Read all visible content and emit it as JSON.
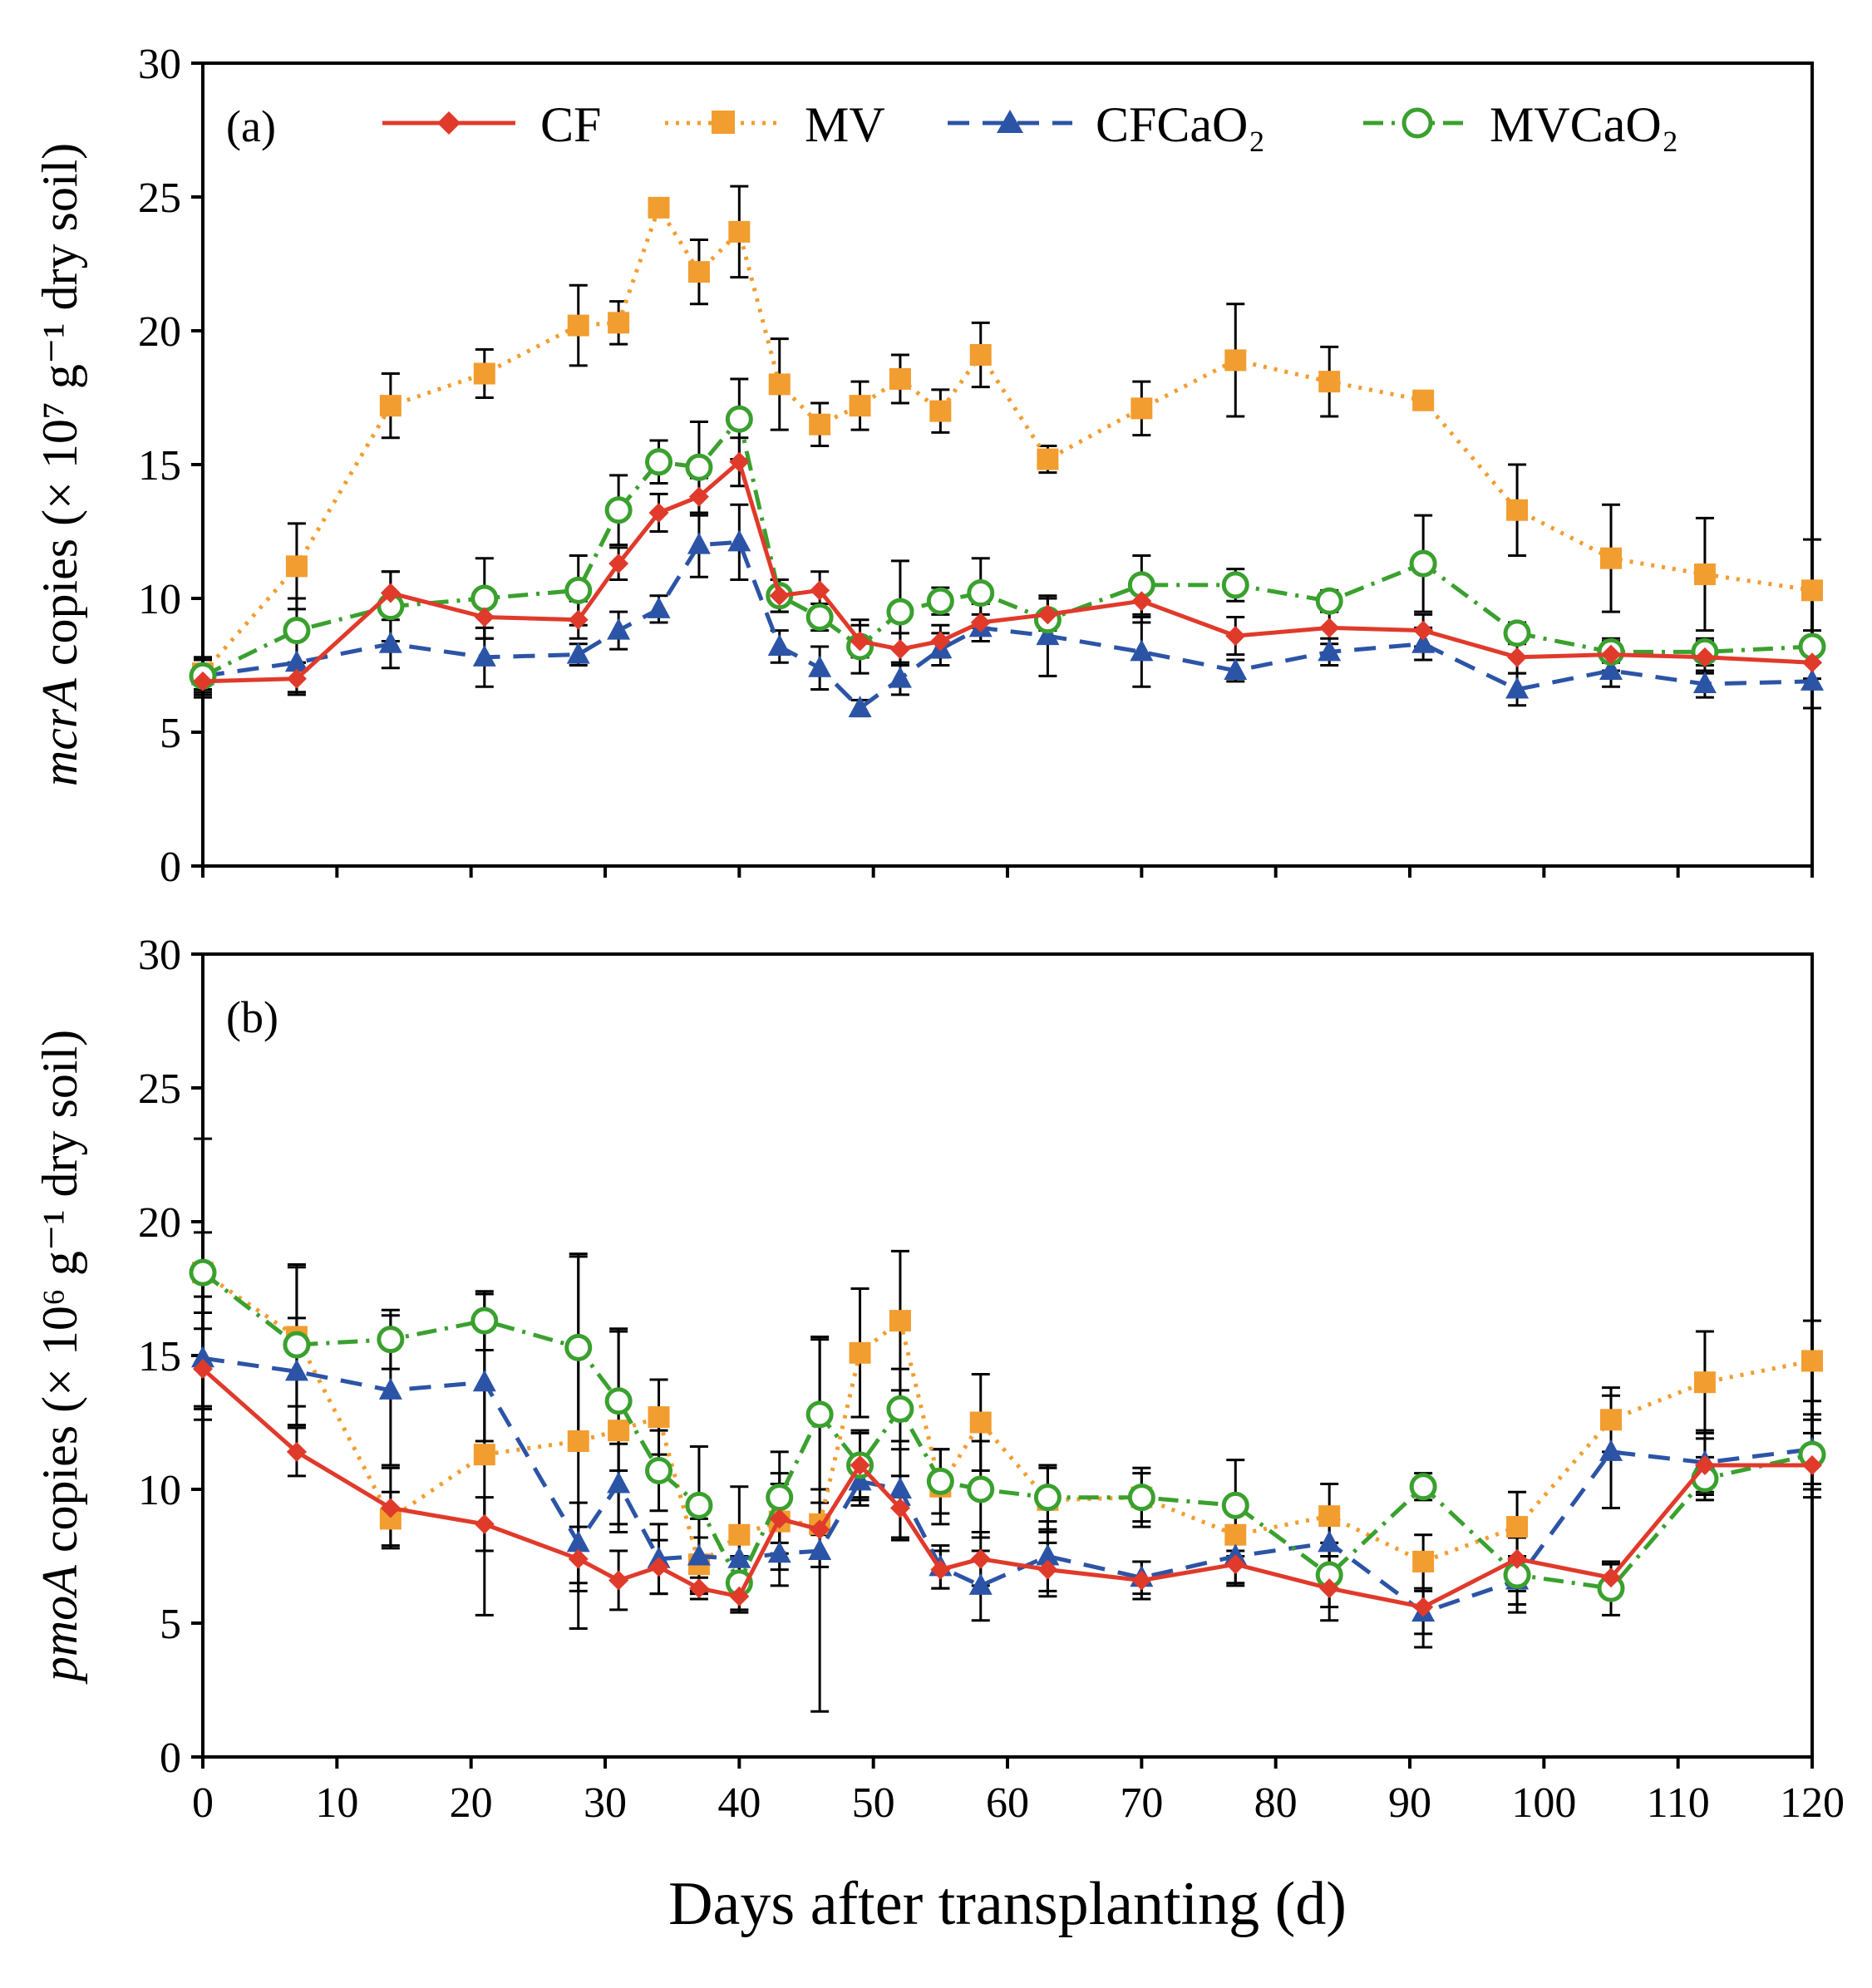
{
  "figure": {
    "xlabel": "Days after transplanting (d)",
    "xticks": [
      "0",
      "10",
      "20",
      "30",
      "40",
      "50",
      "60",
      "70",
      "80",
      "90",
      "100",
      "110",
      "120"
    ],
    "legend": [
      {
        "name": "CF",
        "color": "#e03a2b",
        "marker": "diamond",
        "line": "solid"
      },
      {
        "name": "MV",
        "color": "#f29d30",
        "marker": "square",
        "line": "dotted"
      },
      {
        "name": "CFCaO₂",
        "color": "#2c54a6",
        "marker": "triangle",
        "line": "dashed"
      },
      {
        "name": "MVCaO₂",
        "color": "#3aa02e",
        "marker": "open-circle",
        "line": "dash-dot"
      }
    ]
  },
  "chart_data": [
    {
      "type": "line",
      "panel": "(a)",
      "ylabel_gene": "mcrA",
      "ylabel_rest": " copies (× 10⁷ g⁻¹ dry soil)",
      "xlabel": "Days after transplanting (d)",
      "xlim": [
        0,
        120
      ],
      "ylim": [
        0,
        30
      ],
      "yticks": [
        "0",
        "5",
        "10",
        "15",
        "20",
        "25",
        "30"
      ],
      "series": [
        {
          "name": "CF",
          "x": [
            0,
            7,
            14,
            21,
            28,
            31,
            34,
            37,
            40,
            43,
            46,
            49,
            52,
            55,
            58,
            63,
            70,
            77,
            84,
            91,
            98,
            105,
            112,
            120
          ],
          "y": [
            6.9,
            7.0,
            10.2,
            9.3,
            9.2,
            11.3,
            13.2,
            13.8,
            15.1,
            10.1,
            10.3,
            8.4,
            8.1,
            8.4,
            9.1,
            9.4,
            9.9,
            8.6,
            8.9,
            8.8,
            7.8,
            7.9,
            7.8,
            7.6
          ],
          "err": [
            0.6,
            0.6,
            0.8,
            0.8,
            0.7,
            0.6,
            0.7,
            0.7,
            0.9,
            0.6,
            0.7,
            0.6,
            0.6,
            0.6,
            0.7,
            0.6,
            0.8,
            0.7,
            0.6,
            0.6,
            0.6,
            0.6,
            0.6,
            0.6
          ]
        },
        {
          "name": "MV",
          "x": [
            0,
            7,
            14,
            21,
            28,
            31,
            34,
            37,
            40,
            43,
            46,
            49,
            52,
            55,
            58,
            63,
            70,
            77,
            84,
            91,
            98,
            105,
            112,
            120
          ],
          "y": [
            7.2,
            11.2,
            17.2,
            18.4,
            20.2,
            20.3,
            24.6,
            22.2,
            23.7,
            18.0,
            16.5,
            17.2,
            18.2,
            17.0,
            19.1,
            15.2,
            17.1,
            18.9,
            18.1,
            17.4,
            13.3,
            11.5,
            10.9,
            10.3
          ],
          "err": [
            0.6,
            1.6,
            1.2,
            0.9,
            1.5,
            0.8,
            0.3,
            1.2,
            1.7,
            1.7,
            0.8,
            0.9,
            0.9,
            0.8,
            1.2,
            0.5,
            1.0,
            2.1,
            1.3,
            0.3,
            1.7,
            2.0,
            2.1,
            1.9
          ]
        },
        {
          "name": "CFCaO₂",
          "x": [
            0,
            7,
            14,
            21,
            28,
            31,
            34,
            37,
            40,
            43,
            46,
            49,
            52,
            55,
            58,
            63,
            70,
            77,
            84,
            91,
            98,
            105,
            112,
            120
          ],
          "y": [
            7.1,
            7.6,
            8.3,
            7.8,
            7.9,
            8.8,
            9.6,
            12.0,
            12.1,
            8.2,
            7.4,
            5.9,
            7.0,
            8.1,
            8.9,
            8.6,
            8.0,
            7.3,
            8.0,
            8.3,
            6.6,
            7.3,
            6.8,
            6.9
          ],
          "err": [
            0.6,
            1.1,
            0.9,
            1.1,
            0.4,
            0.7,
            0.5,
            1.2,
            1.4,
            0.6,
            0.8,
            0.3,
            0.6,
            0.6,
            0.5,
            1.5,
            1.3,
            0.4,
            0.5,
            0.6,
            0.6,
            0.6,
            0.5,
            1.0
          ]
        },
        {
          "name": "MVCaO₂",
          "x": [
            0,
            7,
            14,
            21,
            28,
            31,
            34,
            37,
            40,
            43,
            46,
            49,
            52,
            55,
            58,
            63,
            70,
            77,
            84,
            91,
            98,
            105,
            112,
            120
          ],
          "y": [
            7.1,
            8.8,
            9.7,
            10.0,
            10.3,
            13.3,
            15.1,
            14.9,
            16.7,
            10.1,
            9.3,
            8.2,
            9.5,
            9.9,
            10.2,
            9.2,
            10.5,
            10.5,
            9.9,
            11.3,
            8.7,
            8.0,
            8.0,
            8.2
          ],
          "err": [
            0.7,
            1.2,
            1.3,
            1.5,
            1.3,
            1.3,
            0.8,
            1.7,
            1.5,
            0.6,
            0.5,
            1.0,
            1.9,
            0.5,
            1.3,
            0.8,
            1.1,
            0.6,
            0.4,
            1.8,
            0.4,
            0.4,
            0.5,
            0.6
          ]
        }
      ]
    },
    {
      "type": "line",
      "panel": "(b)",
      "ylabel_gene": "pmoA",
      "ylabel_rest": " copies (× 10⁶ g⁻¹ dry soil)",
      "xlabel": "Days after transplanting (d)",
      "xlim": [
        0,
        120
      ],
      "ylim": [
        0,
        30
      ],
      "yticks": [
        "0",
        "5",
        "10",
        "15",
        "20",
        "25",
        "30"
      ],
      "series": [
        {
          "name": "CF",
          "x": [
            0,
            7,
            14,
            21,
            28,
            31,
            34,
            37,
            40,
            43,
            46,
            49,
            52,
            55,
            58,
            63,
            70,
            77,
            84,
            91,
            98,
            105,
            112,
            120
          ],
          "y": [
            14.5,
            11.4,
            9.3,
            8.7,
            7.4,
            6.6,
            7.1,
            6.3,
            6.0,
            8.9,
            8.5,
            10.9,
            9.3,
            7.0,
            7.4,
            7.0,
            6.6,
            7.2,
            6.3,
            5.6,
            7.4,
            6.7,
            10.9,
            10.9
          ],
          "err": [
            1.5,
            0.9,
            1.5,
            1.0,
            1.2,
            1.1,
            1.0,
            0.4,
            0.6,
            1.3,
            1.0,
            1.2,
            1.2,
            0.7,
            1.0,
            1.0,
            0.7,
            0.8,
            1.2,
            1.5,
            1.2,
            0.5,
            1.0,
            1.2
          ]
        },
        {
          "name": "MV",
          "x": [
            0,
            7,
            14,
            21,
            28,
            31,
            34,
            37,
            40,
            43,
            46,
            49,
            52,
            55,
            58,
            63,
            70,
            77,
            84,
            91,
            98,
            105,
            112,
            120
          ],
          "y": [
            18.1,
            15.7,
            8.9,
            11.3,
            11.8,
            12.2,
            12.7,
            7.2,
            8.3,
            8.8,
            8.7,
            15.1,
            16.3,
            10.1,
            12.5,
            9.6,
            9.7,
            8.3,
            9.0,
            7.3,
            8.6,
            12.6,
            14.0,
            14.8
          ],
          "err": [
            5.0,
            2.6,
            1.0,
            6.0,
            7.0,
            3.8,
            1.4,
            1.0,
            1.8,
            1.8,
            7.0,
            2.4,
            2.6,
            1.4,
            1.8,
            1.2,
            1.1,
            0.8,
            1.2,
            1.0,
            1.3,
            1.2,
            1.9,
            1.5
          ]
        },
        {
          "name": "CFCaO₂",
          "x": [
            0,
            7,
            14,
            21,
            28,
            31,
            34,
            37,
            40,
            43,
            46,
            49,
            52,
            55,
            58,
            63,
            70,
            77,
            84,
            91,
            98,
            105,
            112,
            120
          ],
          "y": [
            14.9,
            14.4,
            13.7,
            14.0,
            8.0,
            10.2,
            7.4,
            7.5,
            7.4,
            7.6,
            7.7,
            10.3,
            10.0,
            7.1,
            6.4,
            7.5,
            6.7,
            7.5,
            8.0,
            5.4,
            6.6,
            11.4,
            11.0,
            11.5
          ],
          "err": [
            2.3,
            2.0,
            2.8,
            2.2,
            1.5,
            1.5,
            1.3,
            1.4,
            0.9,
            1.2,
            0.6,
            0.9,
            1.8,
            0.8,
            1.3,
            1.3,
            0.6,
            1.0,
            1.0,
            0.8,
            0.9,
            2.1,
            1.2,
            1.3
          ]
        },
        {
          "name": "MVCaO₂",
          "x": [
            0,
            7,
            14,
            21,
            28,
            31,
            34,
            37,
            40,
            43,
            46,
            49,
            52,
            55,
            58,
            63,
            70,
            77,
            84,
            91,
            98,
            105,
            112,
            120
          ],
          "y": [
            18.1,
            15.4,
            15.6,
            16.3,
            15.3,
            13.3,
            10.7,
            9.4,
            6.5,
            9.7,
            12.8,
            10.9,
            13.0,
            10.3,
            10.0,
            9.7,
            9.7,
            9.4,
            6.8,
            10.1,
            6.8,
            6.3,
            10.4,
            11.3
          ],
          "err": [
            1.5,
            3.0,
            1.1,
            1.1,
            3.4,
            2.6,
            1.5,
            2.2,
            1.0,
            1.7,
            2.8,
            1.3,
            1.5,
            1.2,
            1.8,
            1.2,
            0.9,
            1.7,
            1.2,
            0.5,
            1.4,
            1.0,
            0.8,
            1.3
          ]
        }
      ]
    }
  ]
}
